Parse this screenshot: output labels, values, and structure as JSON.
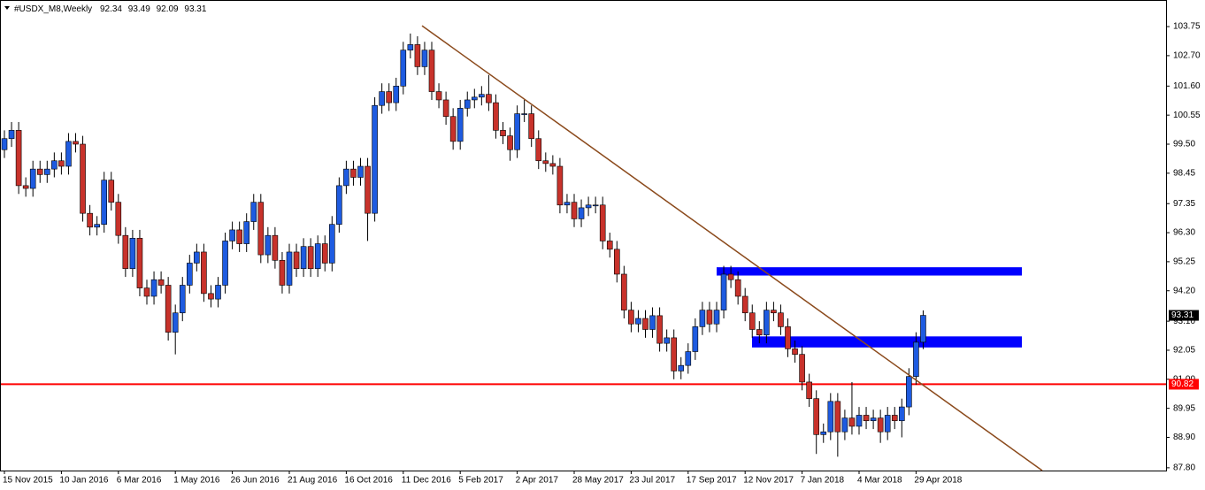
{
  "chart_data": {
    "type": "candlestick",
    "title": "#USDX_M8,Weekly",
    "categories": [
      "15 Nov 2015",
      null,
      null,
      null,
      null,
      null,
      null,
      null,
      "10 Jan 2016",
      null,
      null,
      null,
      null,
      null,
      null,
      null,
      "6 Mar 2016",
      null,
      null,
      null,
      null,
      null,
      null,
      null,
      "1 May 2016",
      null,
      null,
      null,
      null,
      null,
      null,
      null,
      "26 Jun 2016",
      null,
      null,
      null,
      null,
      null,
      null,
      null,
      "21 Aug 2016",
      null,
      null,
      null,
      null,
      null,
      null,
      null,
      "16 Oct 2016",
      null,
      null,
      null,
      null,
      null,
      null,
      null,
      "11 Dec 2016",
      null,
      null,
      null,
      null,
      null,
      null,
      null,
      "5 Feb 2017",
      null,
      null,
      null,
      null,
      null,
      null,
      null,
      "2 Apr 2017",
      null,
      null,
      null,
      null,
      null,
      null,
      null,
      "28 May 2017",
      null,
      null,
      null,
      null,
      null,
      null,
      null,
      "23 Jul 2017",
      null,
      null,
      null,
      null,
      null,
      null,
      null,
      "17 Sep 2017",
      null,
      null,
      null,
      null,
      null,
      null,
      null,
      "12 Nov 2017",
      null,
      null,
      null,
      null,
      null,
      null,
      null,
      "7 Jan 2018",
      null,
      null,
      null,
      null,
      null,
      null,
      null,
      "4 Mar 2018",
      null,
      null,
      null,
      null,
      null,
      null,
      null,
      "29 Apr 2018",
      null
    ],
    "open": [
      99.3,
      99.7,
      100.0,
      98.0,
      97.9,
      98.6,
      98.4,
      98.6,
      98.9,
      98.7,
      99.6,
      99.5,
      97.0,
      96.5,
      96.6,
      98.2,
      97.4,
      96.2,
      95.0,
      96.1,
      94.3,
      94.0,
      94.6,
      94.4,
      92.7,
      93.4,
      94.4,
      95.2,
      95.6,
      94.1,
      93.9,
      94.4,
      96.0,
      96.4,
      95.9,
      96.7,
      97.4,
      95.5,
      96.2,
      95.3,
      94.4,
      95.6,
      95.0,
      95.8,
      95.0,
      95.9,
      95.2,
      96.6,
      98.0,
      98.6,
      98.3,
      98.7,
      97.0,
      100.9,
      101.4,
      101.0,
      101.6,
      102.9,
      103.1,
      102.3,
      102.9,
      101.4,
      101.1,
      100.5,
      99.6,
      100.8,
      101.1,
      101.2,
      101.3,
      101.0,
      100.0,
      99.8,
      99.3,
      100.6,
      100.6,
      99.7,
      98.9,
      98.8,
      98.7,
      97.3,
      97.4,
      96.8,
      97.2,
      97.3,
      97.3,
      96.0,
      95.7,
      94.8,
      93.5,
      93.0,
      93.2,
      92.8,
      93.3,
      92.3,
      92.5,
      91.3,
      91.5,
      92.0,
      92.9,
      93.5,
      93.0,
      93.5,
      94.8,
      94.6,
      94.0,
      93.4,
      92.8,
      92.6,
      93.5,
      93.4,
      92.9,
      92.1,
      91.9,
      90.9,
      90.3,
      89.0,
      89.1,
      90.2,
      89.1,
      89.6,
      89.3,
      89.7,
      89.5,
      89.6,
      89.1,
      89.7,
      89.5,
      90.0,
      91.1,
      92.34
    ],
    "high": [
      100.0,
      100.3,
      100.3,
      98.3,
      98.9,
      98.9,
      98.9,
      99.2,
      99.2,
      99.9,
      99.9,
      99.8,
      97.3,
      96.9,
      98.5,
      98.5,
      97.7,
      96.5,
      96.4,
      96.4,
      94.6,
      94.9,
      94.9,
      94.7,
      93.7,
      94.7,
      95.5,
      95.9,
      95.9,
      94.4,
      94.7,
      96.3,
      96.7,
      96.7,
      97.0,
      97.7,
      97.7,
      96.5,
      96.5,
      95.6,
      95.9,
      95.9,
      96.1,
      96.1,
      96.2,
      96.2,
      96.9,
      98.3,
      98.9,
      98.9,
      99.0,
      99.0,
      101.2,
      101.7,
      101.7,
      101.9,
      103.2,
      103.5,
      103.4,
      103.2,
      103.2,
      101.7,
      101.4,
      100.8,
      101.1,
      101.4,
      101.5,
      101.6,
      102.0,
      101.3,
      100.3,
      100.1,
      100.9,
      101.1,
      100.9,
      100.0,
      99.2,
      99.1,
      99.0,
      97.7,
      97.7,
      97.5,
      97.6,
      97.6,
      97.6,
      96.3,
      96.0,
      95.1,
      93.8,
      93.5,
      93.5,
      93.6,
      93.6,
      92.8,
      92.8,
      91.8,
      92.3,
      93.2,
      93.8,
      93.8,
      93.8,
      95.1,
      95.1,
      94.9,
      94.3,
      93.7,
      93.1,
      93.8,
      93.8,
      93.7,
      93.2,
      92.4,
      92.2,
      91.2,
      90.6,
      89.4,
      90.5,
      90.5,
      89.9,
      90.9,
      90.0,
      90.0,
      89.9,
      89.9,
      90.0,
      90.0,
      90.3,
      91.4,
      92.7,
      93.49
    ],
    "low": [
      99.0,
      99.4,
      97.7,
      97.6,
      97.6,
      98.1,
      98.1,
      98.3,
      98.4,
      98.4,
      99.2,
      96.7,
      96.2,
      96.2,
      96.3,
      97.1,
      95.9,
      94.7,
      94.7,
      94.0,
      93.7,
      93.7,
      94.1,
      92.4,
      91.9,
      93.1,
      94.1,
      94.9,
      93.8,
      93.6,
      93.6,
      94.1,
      95.7,
      95.6,
      95.6,
      96.4,
      95.2,
      95.2,
      95.0,
      94.1,
      94.1,
      94.7,
      94.7,
      94.7,
      94.7,
      94.9,
      94.9,
      96.3,
      97.7,
      98.0,
      98.0,
      96.0,
      96.7,
      100.6,
      100.7,
      100.7,
      101.3,
      102.6,
      102.0,
      102.0,
      101.1,
      100.8,
      100.2,
      99.3,
      99.3,
      100.5,
      100.8,
      100.9,
      100.7,
      99.7,
      99.5,
      98.9,
      99.0,
      100.3,
      99.4,
      98.6,
      98.5,
      98.4,
      97.0,
      97.0,
      96.5,
      96.5,
      96.9,
      97.0,
      95.7,
      95.4,
      94.5,
      93.2,
      92.7,
      92.7,
      92.5,
      92.5,
      92.0,
      92.0,
      91.0,
      91.0,
      91.2,
      91.7,
      92.6,
      92.7,
      92.7,
      93.2,
      94.3,
      93.7,
      93.1,
      92.5,
      92.3,
      92.3,
      93.1,
      92.6,
      91.8,
      91.6,
      90.6,
      90.0,
      88.3,
      88.7,
      88.8,
      88.2,
      88.8,
      89.0,
      89.0,
      89.2,
      89.2,
      88.7,
      88.8,
      89.2,
      88.9,
      89.7,
      90.8,
      92.09
    ],
    "close": [
      99.7,
      100.0,
      98.0,
      97.9,
      98.6,
      98.4,
      98.6,
      98.9,
      98.7,
      99.6,
      99.5,
      97.0,
      96.5,
      96.6,
      98.2,
      97.4,
      96.2,
      95.0,
      96.1,
      94.3,
      94.0,
      94.6,
      94.4,
      92.7,
      93.4,
      94.4,
      95.2,
      95.6,
      94.1,
      93.9,
      94.4,
      96.0,
      96.4,
      95.9,
      96.7,
      97.4,
      95.5,
      96.2,
      95.3,
      94.4,
      95.6,
      95.0,
      95.8,
      95.0,
      95.9,
      95.2,
      96.6,
      98.0,
      98.6,
      98.3,
      98.7,
      97.0,
      100.9,
      101.4,
      101.0,
      101.6,
      102.9,
      103.1,
      102.3,
      102.9,
      101.4,
      101.1,
      100.5,
      99.6,
      100.8,
      101.1,
      101.2,
      101.3,
      101.0,
      100.0,
      99.8,
      99.3,
      100.6,
      100.6,
      99.7,
      98.9,
      98.8,
      98.7,
      97.3,
      97.4,
      96.8,
      97.2,
      97.3,
      97.3,
      96.0,
      95.7,
      94.8,
      93.5,
      93.0,
      93.2,
      92.8,
      93.3,
      92.3,
      92.5,
      91.3,
      91.5,
      92.0,
      92.9,
      93.5,
      93.0,
      93.5,
      94.8,
      94.6,
      94.0,
      93.4,
      92.8,
      92.6,
      93.5,
      93.4,
      92.9,
      92.1,
      91.9,
      90.9,
      90.3,
      89.0,
      89.1,
      90.2,
      89.1,
      89.6,
      89.3,
      89.7,
      89.5,
      89.6,
      89.1,
      89.7,
      89.5,
      90.0,
      91.1,
      92.34,
      93.31
    ],
    "bull_color": "#1e5be0",
    "bear_color": "#c8322b",
    "ylim": [
      87.7,
      104.68
    ],
    "yticks": [
      103.75,
      {
        "value": 102.7,
        "label": "102.70"
      },
      {
        "value": 101.6,
        "label": "101.60"
      },
      100.55,
      {
        "value": 99.5,
        "label": "99.50"
      },
      98.45,
      97.35,
      {
        "value": 96.3,
        "label": "96.30"
      },
      95.25,
      {
        "value": 94.2,
        "label": "94.20"
      },
      {
        "value": 93.1,
        "label": "93.10"
      },
      92.05,
      {
        "value": 91.0,
        "label": "91.00"
      },
      89.95,
      {
        "value": 88.9,
        "label": "88.90"
      },
      {
        "value": 87.8,
        "label": "87.80"
      }
    ],
    "hline": {
      "value": 90.82,
      "color": "#ff0000"
    },
    "zones": [
      {
        "from": 94.75,
        "to": 95.05,
        "color": "#0000ff"
      },
      {
        "from": 92.15,
        "to": 92.55,
        "color": "#0000ff"
      }
    ],
    "trendline": {
      "from": 103.78,
      "to": 87.7,
      "color": "#8b4a1c"
    }
  }
}
